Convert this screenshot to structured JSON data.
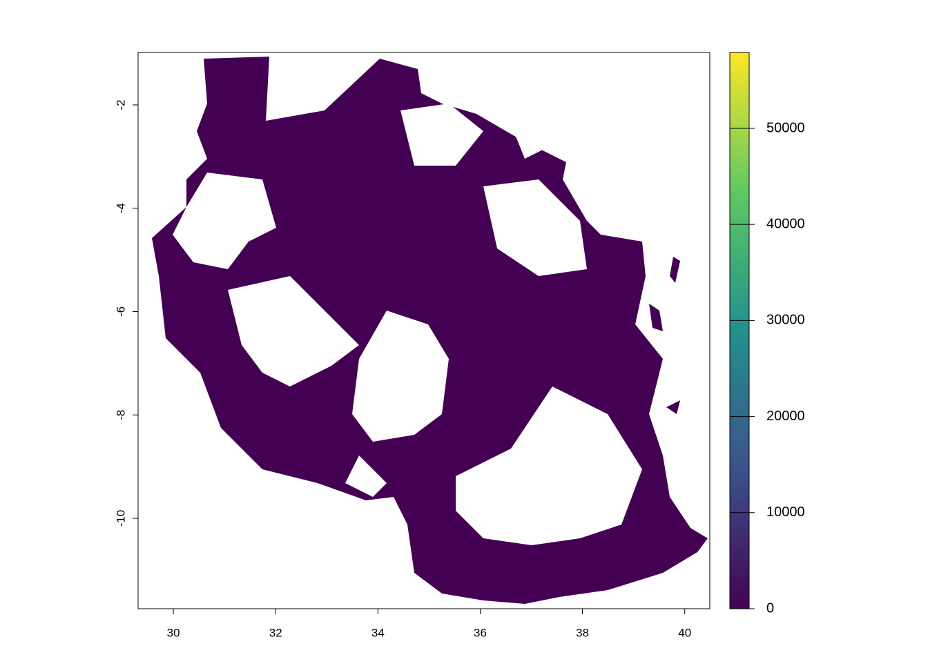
{
  "chart_data": {
    "type": "raster",
    "xlim": [
      29.31,
      40.49
    ],
    "xticks": [
      30,
      32,
      34,
      36,
      38,
      40
    ],
    "ylim": [
      -11.75,
      -0.985
    ],
    "yticks": [
      -10,
      -8,
      -6,
      -4,
      -2
    ],
    "fill_color": "#440154",
    "colorbar": {
      "lim": [
        0,
        57900
      ],
      "ticks": [
        0,
        10000,
        20000,
        30000,
        40000,
        50000
      ],
      "colors": [
        "#440154",
        "#3b528b",
        "#21918c",
        "#5ec962",
        "#fde725"
      ]
    }
  }
}
